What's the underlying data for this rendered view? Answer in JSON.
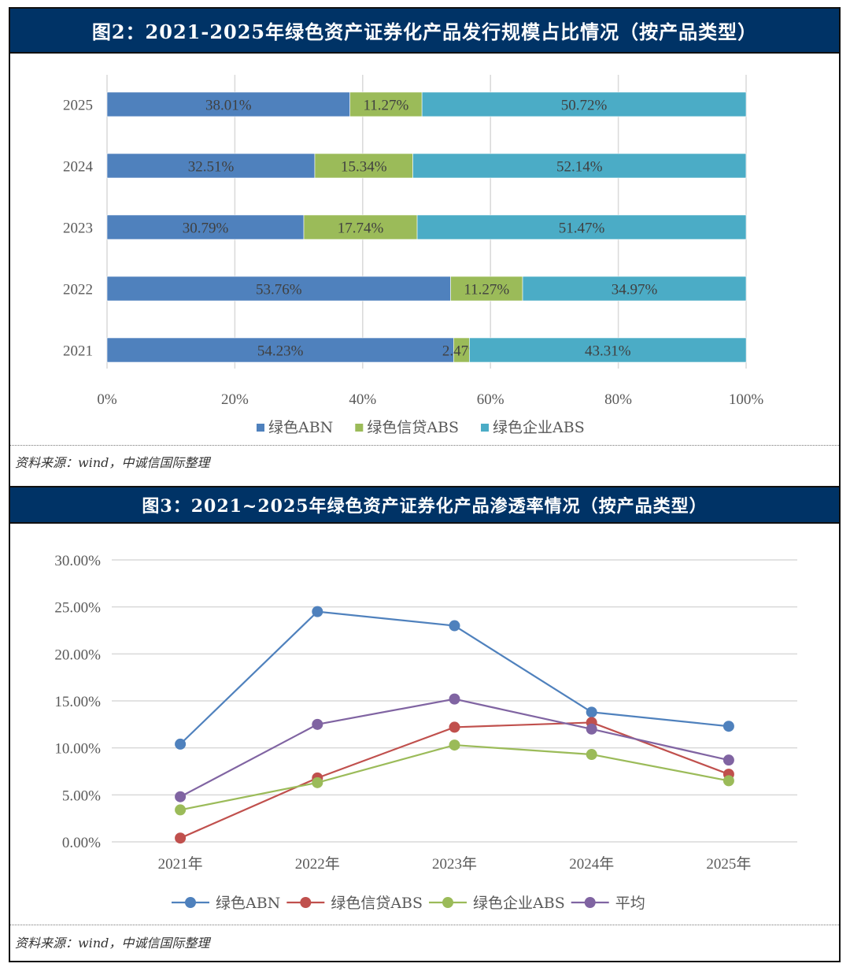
{
  "figure2": {
    "title": "图2：2021-2025年绿色资产证券化产品发行规模占比情况（按产品类型）",
    "source": "资料来源：wind，中诚信国际整理"
  },
  "figure3": {
    "title": "图3：2021~2025年绿色资产证券化产品渗透率情况（按产品类型）",
    "source": "资料来源：wind，中诚信国际整理"
  },
  "chart_data": [
    {
      "type": "bar",
      "orientation": "horizontal",
      "stacked": "percent",
      "title": "2021-2025年绿色资产证券化产品发行规模占比情况（按产品类型）",
      "categories": [
        "2025",
        "2024",
        "2023",
        "2022",
        "2021"
      ],
      "series": [
        {
          "name": "绿色ABN",
          "color": "#4F81BD",
          "values": [
            38.01,
            32.51,
            30.79,
            53.76,
            54.23
          ],
          "labels": [
            "38.01%",
            "32.51%",
            "30.79%",
            "53.76%",
            "54.23%"
          ]
        },
        {
          "name": "绿色信贷ABS",
          "color": "#9BBB59",
          "values": [
            11.27,
            15.34,
            17.74,
            11.27,
            2.47
          ],
          "labels": [
            "11.27%",
            "15.34%",
            "17.74%",
            "11.27%",
            "2.47%"
          ]
        },
        {
          "name": "绿色企业ABS",
          "color": "#4BACC6",
          "values": [
            50.72,
            52.14,
            51.47,
            34.97,
            43.31
          ],
          "labels": [
            "50.72%",
            "52.14%",
            "51.47%",
            "34.97%",
            "43.31%"
          ]
        }
      ],
      "xlim": [
        0,
        100
      ],
      "xticks": [
        "0%",
        "20%",
        "40%",
        "60%",
        "80%",
        "100%"
      ],
      "grid": true,
      "legend": "bottom"
    },
    {
      "type": "line",
      "title": "2021~2025年绿色资产证券化产品渗透率情况（按产品类型）",
      "categories": [
        "2021年",
        "2022年",
        "2023年",
        "2024年",
        "2025年"
      ],
      "series": [
        {
          "name": "绿色ABN",
          "color": "#4F81BD",
          "values": [
            10.4,
            24.5,
            23.0,
            13.8,
            12.3
          ]
        },
        {
          "name": "绿色信贷ABS",
          "color": "#C0504D",
          "values": [
            0.4,
            6.8,
            12.2,
            12.7,
            7.2
          ]
        },
        {
          "name": "绿色企业ABS",
          "color": "#9BBB59",
          "values": [
            3.4,
            6.3,
            10.3,
            9.3,
            6.5
          ]
        },
        {
          "name": "平均",
          "color": "#8064A2",
          "values": [
            4.8,
            12.5,
            15.2,
            12.0,
            8.7
          ]
        }
      ],
      "ylim": [
        0,
        30
      ],
      "yticks": [
        "0.00%",
        "5.00%",
        "10.00%",
        "15.00%",
        "20.00%",
        "25.00%",
        "30.00%"
      ],
      "grid": true,
      "legend": "bottom"
    }
  ]
}
